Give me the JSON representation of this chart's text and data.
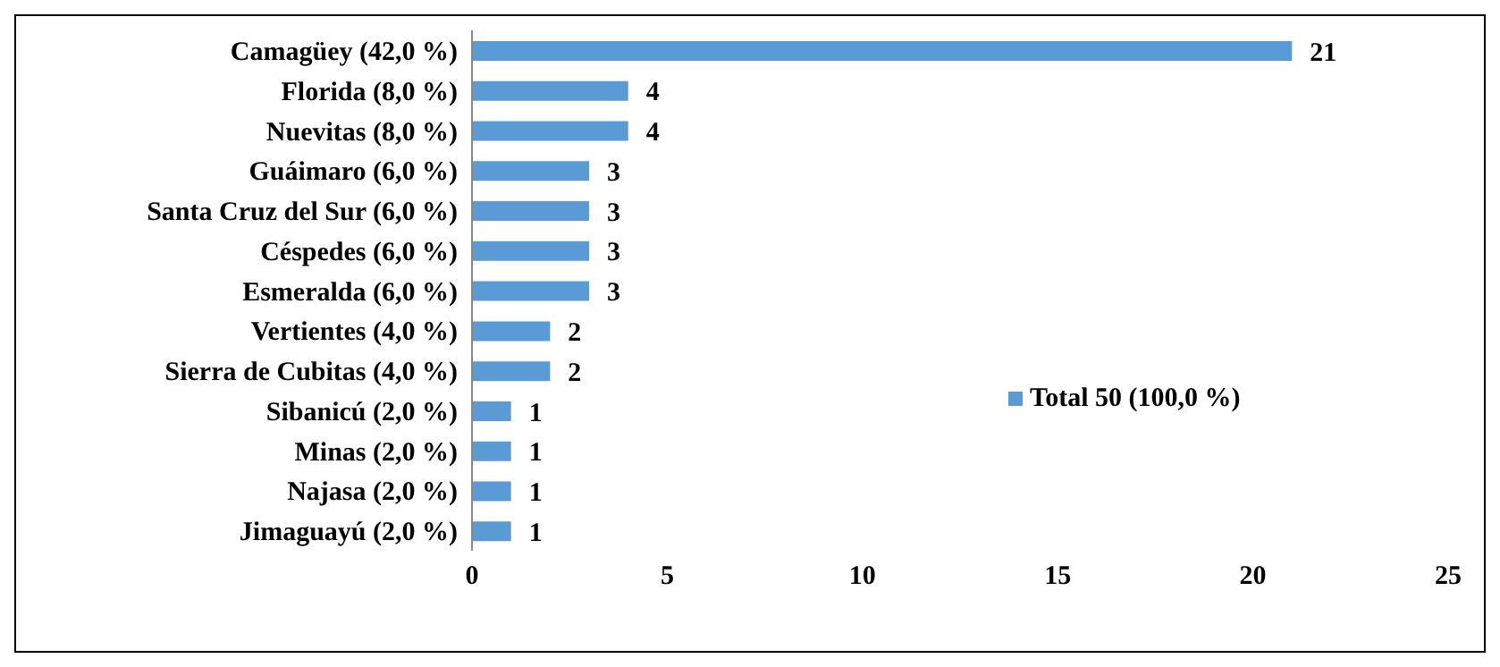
{
  "chart_data": {
    "type": "bar",
    "orientation": "horizontal",
    "categories": [
      "Camagüey (42,0 %)",
      "Florida (8,0 %)",
      "Nuevitas (8,0 %)",
      "Guáimaro (6,0 %)",
      "Santa Cruz del Sur (6,0 %)",
      "Céspedes (6,0 %)",
      "Esmeralda (6,0 %)",
      "Vertientes (4,0 %)",
      "Sierra de Cubitas (4,0 %)",
      "Sibanicú (2,0 %)",
      "Minas (2,0 %)",
      "Najasa (2,0 %)",
      "Jimaguayú (2,0 %)"
    ],
    "series": [
      {
        "name": "Total 50 (100,0 %)",
        "color": "#5b9bd5",
        "values": [
          21,
          4,
          4,
          3,
          3,
          3,
          3,
          2,
          2,
          1,
          1,
          1,
          1
        ]
      }
    ],
    "xlim": [
      0,
      25
    ],
    "xticks": [
      0,
      5,
      10,
      15,
      20,
      25
    ],
    "grid": false,
    "legend": "right",
    "data_labels": true
  }
}
